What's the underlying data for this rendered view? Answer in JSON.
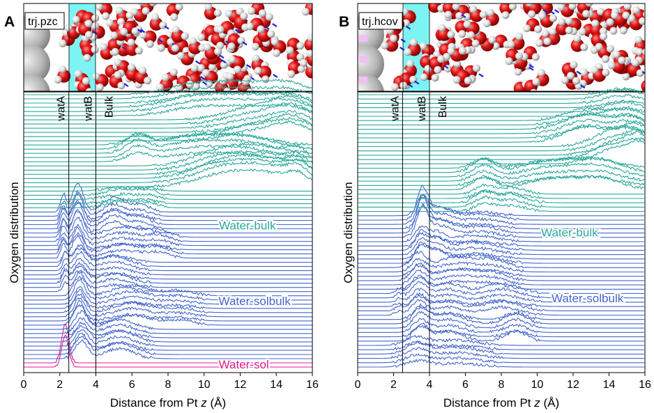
{
  "panels": [
    {
      "letter": "A",
      "snapshot_label": "trj.pzc",
      "ylabel": "Oxygen distribution",
      "xlabel_pre": "Distance from Pt ",
      "xlabel_var": "z",
      "xlabel_post": " (Å)",
      "vlines": [
        {
          "x": 2.5,
          "label": "watA"
        },
        {
          "x": 4.0,
          "label": "watB"
        },
        {
          "x": 5.0,
          "label": "Bulk",
          "line": false
        }
      ],
      "group_labels": [
        {
          "text": "Water-bulk",
          "group": "bulk",
          "x": 12.4,
          "y": 0.525
        },
        {
          "text": "Water-solbulk",
          "group": "solbulk",
          "x": 12.8,
          "y": 0.255
        },
        {
          "text": "Water-sol",
          "group": "sol",
          "x": 12.2,
          "y": 0.03
        }
      ]
    },
    {
      "letter": "B",
      "snapshot_label": "trj.hcov",
      "ylabel": "Oxygen distribution",
      "xlabel_pre": "Distance from Pt ",
      "xlabel_var": "z",
      "xlabel_post": " (Å)",
      "vlines": [
        {
          "x": 2.5,
          "label": "watA"
        },
        {
          "x": 4.0,
          "label": "watB"
        },
        {
          "x": 5.0,
          "label": "Bulk",
          "line": false
        }
      ],
      "group_labels": [
        {
          "text": "Water-bulk",
          "group": "bulk",
          "x": 11.8,
          "y": 0.5
        },
        {
          "text": "Water-solbulk",
          "group": "solbulk",
          "x": 12.8,
          "y": 0.265
        }
      ]
    }
  ],
  "chart_data": [
    {
      "type": "area",
      "panel": "A",
      "xlabel": "Distance from Pt z (Å)",
      "ylabel": "Oxygen distribution",
      "xlim": [
        0,
        16
      ],
      "xticks": [
        0,
        2,
        4,
        6,
        8,
        10,
        12,
        14,
        16
      ],
      "colors": {
        "bulk": "#2aa89a",
        "solbulk": "#4466cc",
        "sol": "#e0198c"
      },
      "series": [
        {
          "group": "sol",
          "count": 2,
          "peaks": [
            [
              2.3,
              0.16,
              0.2
            ]
          ]
        },
        {
          "group": "solbulk",
          "count": 8,
          "peaks": [
            [
              3.2,
              0.06,
              0.35
            ],
            [
              5.3,
              0.035,
              0.8
            ]
          ]
        },
        {
          "group": "solbulk",
          "count": 8,
          "peaks": [
            [
              3.1,
              0.07,
              0.3
            ],
            [
              6.0,
              0.03,
              1.0
            ],
            [
              8.6,
              0.015,
              0.8
            ]
          ]
        },
        {
          "group": "solbulk",
          "count": 8,
          "peaks": [
            [
              2.3,
              0.04,
              0.15
            ],
            [
              3.1,
              0.06,
              0.35
            ],
            [
              5.0,
              0.03,
              0.9
            ]
          ]
        },
        {
          "group": "solbulk",
          "count": 6,
          "peaks": [
            [
              2.2,
              0.05,
              0.15
            ],
            [
              3.0,
              0.08,
              0.3
            ],
            [
              5.5,
              0.03,
              1.0
            ],
            [
              7.5,
              0.02,
              0.6
            ]
          ]
        },
        {
          "group": "solbulk",
          "count": 6,
          "peaks": [
            [
              2.2,
              0.06,
              0.15
            ],
            [
              3.0,
              0.1,
              0.3
            ],
            [
              5.0,
              0.05,
              0.6
            ],
            [
              6.5,
              0.025,
              0.5
            ]
          ]
        },
        {
          "group": "bulk",
          "count": 5,
          "peaks": [
            [
              5.5,
              0.02,
              0.9
            ],
            [
              7.0,
              0.012,
              0.5
            ]
          ]
        },
        {
          "group": "bulk",
          "count": 6,
          "peaks": [
            [
              11.0,
              0.05,
              1.5
            ],
            [
              13.5,
              0.05,
              1.4
            ],
            [
              15.2,
              0.04,
              0.6
            ]
          ]
        },
        {
          "group": "bulk",
          "count": 5,
          "peaks": [
            [
              6.3,
              0.04,
              0.6
            ],
            [
              9.5,
              0.04,
              1.8
            ],
            [
              12.5,
              0.03,
              1.5
            ]
          ]
        },
        {
          "group": "bulk",
          "count": 6,
          "peaks": [
            [
              13.0,
              0.04,
              1.6
            ],
            [
              15.0,
              0.05,
              1.0
            ]
          ]
        },
        {
          "group": "bulk",
          "count": 6,
          "peaks": [
            [
              9.5,
              0.035,
              1.5
            ],
            [
              12.5,
              0.04,
              1.6
            ],
            [
              14.8,
              0.03,
              1.0
            ]
          ]
        }
      ]
    },
    {
      "type": "area",
      "panel": "B",
      "xlabel": "Distance from Pt z (Å)",
      "ylabel": "Oxygen distribution",
      "xlim": [
        0,
        16
      ],
      "xticks": [
        0,
        2,
        4,
        6,
        8,
        10,
        12,
        14,
        16
      ],
      "colors": {
        "bulk": "#2aa89a",
        "solbulk": "#4466cc"
      },
      "series": [
        {
          "group": "solbulk",
          "count": 6,
          "peaks": [
            [
              3.3,
              0.03,
              0.6
            ],
            [
              5.5,
              0.02,
              1.2
            ]
          ]
        },
        {
          "group": "solbulk",
          "count": 6,
          "peaks": [
            [
              3.5,
              0.05,
              0.4
            ],
            [
              5.0,
              0.03,
              0.8
            ],
            [
              8.8,
              0.03,
              0.6
            ]
          ]
        },
        {
          "group": "solbulk",
          "count": 6,
          "peaks": [
            [
              2.3,
              0.015,
              0.2
            ],
            [
              3.4,
              0.05,
              0.4
            ],
            [
              5.0,
              0.03,
              0.8
            ],
            [
              8.0,
              0.03,
              1.0
            ]
          ]
        },
        {
          "group": "solbulk",
          "count": 6,
          "peaks": [
            [
              3.4,
              0.05,
              0.4
            ],
            [
              5.5,
              0.035,
              1.0
            ],
            [
              7.5,
              0.025,
              0.8
            ]
          ]
        },
        {
          "group": "solbulk",
          "count": 6,
          "peaks": [
            [
              3.5,
              0.05,
              0.3
            ],
            [
              4.3,
              0.04,
              0.5
            ],
            [
              6.5,
              0.025,
              1.2
            ]
          ]
        },
        {
          "group": "solbulk",
          "count": 6,
          "peaks": [
            [
              3.6,
              0.09,
              0.3
            ],
            [
              4.5,
              0.04,
              0.7
            ],
            [
              6.8,
              0.02,
              1.0
            ]
          ]
        },
        {
          "group": "bulk",
          "count": 5,
          "peaks": [
            [
              7.0,
              0.03,
              0.5
            ],
            [
              8.5,
              0.025,
              0.8
            ]
          ]
        },
        {
          "group": "bulk",
          "count": 6,
          "peaks": [
            [
              7.0,
              0.04,
              0.6
            ],
            [
              10.8,
              0.035,
              1.5
            ],
            [
              13.5,
              0.035,
              1.2
            ]
          ]
        },
        {
          "group": "bulk",
          "count": 5,
          "peaks": [
            [
              14.5,
              0.06,
              1.2
            ],
            [
              15.8,
              0.05,
              0.6
            ]
          ]
        },
        {
          "group": "bulk",
          "count": 6,
          "peaks": [
            [
              12.8,
              0.05,
              1.2
            ],
            [
              15.2,
              0.04,
              0.8
            ]
          ]
        },
        {
          "group": "bulk",
          "count": 6,
          "peaks": [
            [
              14.8,
              0.03,
              1.0
            ]
          ]
        }
      ]
    }
  ]
}
